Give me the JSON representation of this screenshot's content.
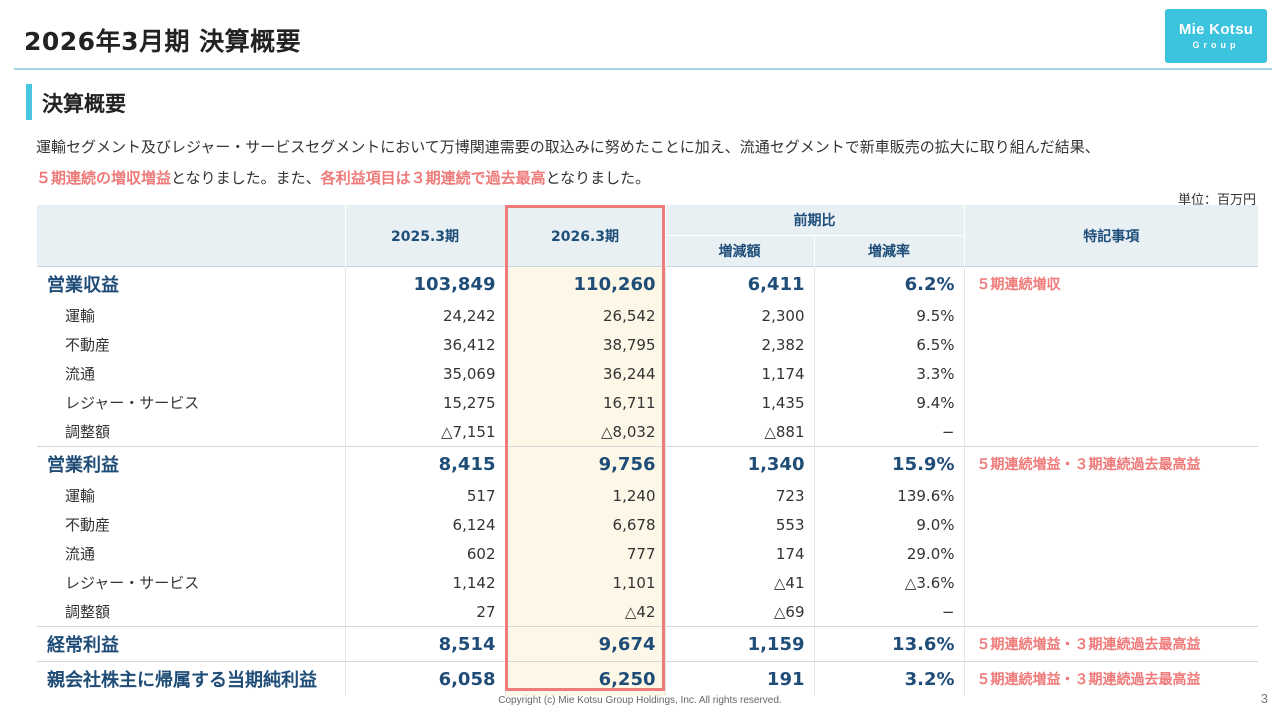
{
  "title": "2026年3月期 決算概要",
  "logo": {
    "line1": "Mie Kotsu",
    "line2": "Group"
  },
  "section_title": "決算概要",
  "summary": {
    "line1": "運輸セグメント及びレジャー・サービスセグメントにおいて万博関連需要の取込みに努めたことに加え、流通セグメントで新車販売の拡大に取り組んだ結果、",
    "line2_hl1": "５期連続の増収増益",
    "line2_t1": "となりました。また、",
    "line2_hl2": "各利益項目は３期連続で過去最高",
    "line2_t2": "となりました。"
  },
  "unit": "単位：百万円",
  "headers": {
    "prev": "2025.3期",
    "curr": "2026.3期",
    "yoy": "前期比",
    "diff": "増減額",
    "rate": "増減率",
    "notes": "特記事項"
  },
  "rows": [
    {
      "label": "営業収益",
      "prev": "103,849",
      "curr": "110,260",
      "diff": "6,411",
      "rate": "6.2%",
      "note": "５期連続増収"
    },
    {
      "label": "運輸",
      "prev": "24,242",
      "curr": "26,542",
      "diff": "2,300",
      "rate": "9.5%",
      "note": ""
    },
    {
      "label": "不動産",
      "prev": "36,412",
      "curr": "38,795",
      "diff": "2,382",
      "rate": "6.5%",
      "note": ""
    },
    {
      "label": "流通",
      "prev": "35,069",
      "curr": "36,244",
      "diff": "1,174",
      "rate": "3.3%",
      "note": ""
    },
    {
      "label": "レジャー・サービス",
      "prev": "15,275",
      "curr": "16,711",
      "diff": "1,435",
      "rate": "9.4%",
      "note": ""
    },
    {
      "label": "調整額",
      "prev": "△7,151",
      "curr": "△8,032",
      "diff": "△881",
      "rate": "−",
      "note": ""
    },
    {
      "label": "営業利益",
      "prev": "8,415",
      "curr": "9,756",
      "diff": "1,340",
      "rate": "15.9%",
      "note": "５期連続増益・３期連続過去最高益"
    },
    {
      "label": "運輸",
      "prev": "517",
      "curr": "1,240",
      "diff": "723",
      "rate": "139.6%",
      "note": ""
    },
    {
      "label": "不動産",
      "prev": "6,124",
      "curr": "6,678",
      "diff": "553",
      "rate": "9.0%",
      "note": ""
    },
    {
      "label": "流通",
      "prev": "602",
      "curr": "777",
      "diff": "174",
      "rate": "29.0%",
      "note": ""
    },
    {
      "label": "レジャー・サービス",
      "prev": "1,142",
      "curr": "1,101",
      "diff": "△41",
      "rate": "△3.6%",
      "note": ""
    },
    {
      "label": "調整額",
      "prev": "27",
      "curr": "△42",
      "diff": "△69",
      "rate": "−",
      "note": ""
    },
    {
      "label": "経常利益",
      "prev": "8,514",
      "curr": "9,674",
      "diff": "1,159",
      "rate": "13.6%",
      "note": "５期連続増益・３期連続過去最高益"
    },
    {
      "label": "親会社株主に帰属する当期純利益",
      "prev": "6,058",
      "curr": "6,250",
      "diff": "191",
      "rate": "3.2%",
      "note": "５期連続増益・３期連続過去最高益"
    }
  ],
  "footer": {
    "copyright": "Copyright (c) Mie Kotsu Group Holdings, Inc. All rights reserved.",
    "page": "3"
  },
  "colors": {
    "accent": "#47c7e0",
    "highlight": "#ef7a7a",
    "header_bg": "#e9f0f4",
    "header_text": "#1e4e79",
    "current_col_bg": "#fdf7e8"
  }
}
